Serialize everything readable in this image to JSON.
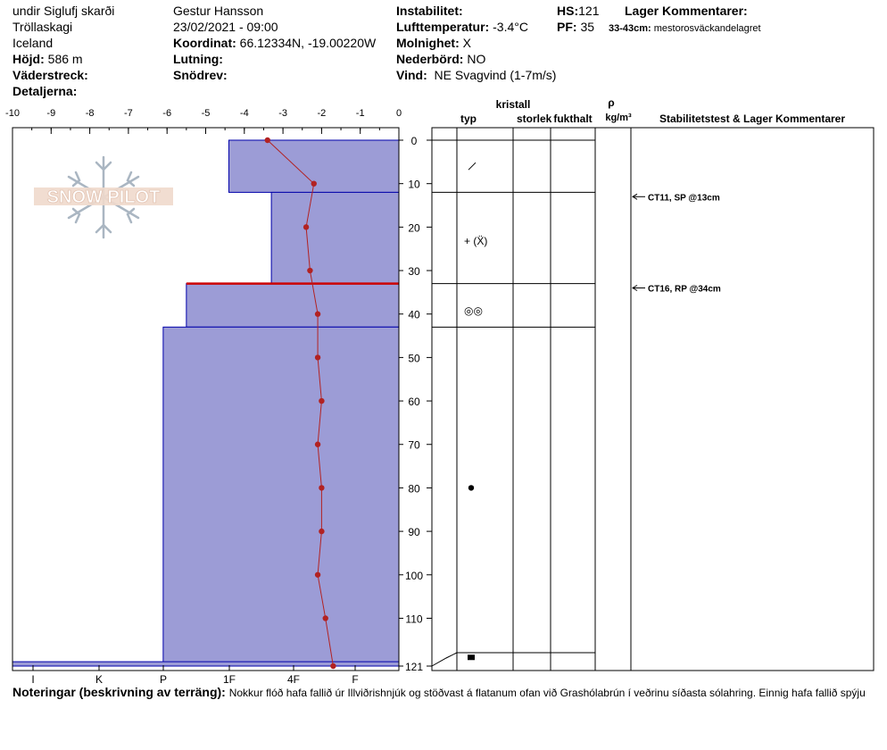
{
  "header": {
    "location": "undir Siglufj skarði",
    "region": "Tröllaskagi",
    "country": "Iceland",
    "elevation_label": "Höjd:",
    "elevation": "586 m",
    "aspect_label": "Väderstreck:",
    "details_label": "Detaljerna:",
    "observer": "Gestur Hansson",
    "datetime": "23/02/2021 - 09:00",
    "coord_label": "Koordinat:",
    "coords": "66.12334N, -19.00220W",
    "slope_label": "Lutning:",
    "drift_label": "Snödrev:",
    "instability_label": "Instabilitet:",
    "airtemp_label": "Lufttemperatur:",
    "airtemp": "-3.4°C",
    "clouds_label": "Molnighet:",
    "clouds": "X",
    "precip_label": "Nederbörd:",
    "precip": "NO",
    "wind_label": "Vind:",
    "wind": "NE Svagvind (1-7m/s)",
    "hs_label": "HS:",
    "hs": "121",
    "pf_label": "PF:",
    "pf": "35",
    "layer_comments_label": "Lager Kommentarer:",
    "layer_comment_depth": "33-43cm:",
    "layer_comment": "mestorosväckandelagret"
  },
  "logo_text": "SNOW PILOT",
  "table_headers": {
    "crystal": "kristall",
    "type": "typ",
    "size": "storlek",
    "moisture": "fukthalt",
    "rho": "ρ",
    "density_unit": "kg/m³",
    "comments": "Stabilitetstest & Lager Kommentarer"
  },
  "hardness_axis": [
    "I",
    "K",
    "P",
    "1F",
    "4F",
    "F"
  ],
  "notes_label": "Noteringar (beskrivning av terräng):",
  "notes_text": "Nokkur flóð hafa fallið úr Illviðrishnjúk og stöðvast á flatanum ofan við Grashólabrún í veðrinu síðasta sólahring. Einnig hafa fallið spýju",
  "tests": [
    {
      "depth": 13,
      "label": "CT11, SP @13cm"
    },
    {
      "depth": 34,
      "label": "CT16, RP @34cm"
    }
  ],
  "colors": {
    "layer_fill": "#9c9cd6",
    "layer_stroke": "#0000aa",
    "temp": "#b22222",
    "weak_layer": "#cc0000"
  },
  "chart_data": {
    "type": "line",
    "title": "",
    "xlabel": "",
    "ylabel": "",
    "xlim": [
      -10,
      0
    ],
    "ylim": [
      0,
      121
    ],
    "x_ticks": [
      -10,
      -9,
      -8,
      -7,
      -6,
      -5,
      -4,
      -3,
      -2,
      -1,
      0
    ],
    "y_ticks": [
      0,
      10,
      20,
      30,
      40,
      50,
      60,
      70,
      80,
      90,
      100,
      110,
      121
    ],
    "temperature_profile": [
      {
        "depth": 0,
        "temp": -3.4
      },
      {
        "depth": 10,
        "temp": -2.2
      },
      {
        "depth": 20,
        "temp": -2.4
      },
      {
        "depth": 30,
        "temp": -2.3
      },
      {
        "depth": 40,
        "temp": -2.1
      },
      {
        "depth": 50,
        "temp": -2.1
      },
      {
        "depth": 60,
        "temp": -2.0
      },
      {
        "depth": 70,
        "temp": -2.1
      },
      {
        "depth": 80,
        "temp": -2.0
      },
      {
        "depth": 90,
        "temp": -2.0
      },
      {
        "depth": 100,
        "temp": -2.1
      },
      {
        "depth": 110,
        "temp": -1.9
      },
      {
        "depth": 121,
        "temp": -1.7
      }
    ],
    "layers": [
      {
        "top": 0,
        "bottom": 12,
        "hardness": "F-",
        "hardness_value": -4.4,
        "grain": "fragment"
      },
      {
        "top": 12,
        "bottom": 33,
        "hardness": "4F+",
        "hardness_value": -3.3,
        "grain": "+ (Ẍ)"
      },
      {
        "top": 33,
        "bottom": 43,
        "hardness": "1F+",
        "hardness_value": -5.5,
        "grain": "surface hoar",
        "weak": true
      },
      {
        "top": 43,
        "bottom": 121,
        "hardness": "P",
        "hardness_value": -6.1,
        "grain": "rounds"
      },
      {
        "top": 120,
        "bottom": 121,
        "hardness": "I",
        "hardness_value": -10,
        "grain": "ice"
      }
    ],
    "grain_symbols": [
      {
        "depth": 6,
        "symbol": "/"
      },
      {
        "depth": 23,
        "symbol": "+ (Ẍ)"
      },
      {
        "depth": 39,
        "symbol": "◎◎"
      },
      {
        "depth": 80,
        "symbol": "•"
      },
      {
        "depth": 119,
        "symbol": "■"
      }
    ]
  }
}
